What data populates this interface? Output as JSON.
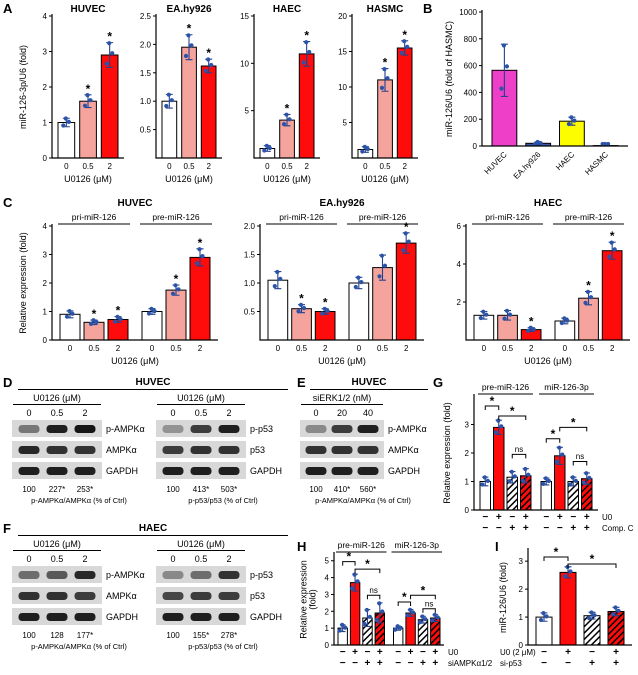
{
  "colors": {
    "bar_white": "#ffffff",
    "bar_salmon": "#f5a49d",
    "bar_red": "#fe0b0b",
    "bar_magenta": "#ee3fc8",
    "bar_blue": "#3d57a8",
    "bar_yellow": "#fdfd00",
    "dot_blue": "#2b53a8",
    "err_blue": "#24418c"
  },
  "panels": {
    "A": {
      "label": "A"
    },
    "B": {
      "label": "B"
    },
    "C": {
      "label": "C"
    },
    "D": {
      "label": "D",
      "title": "HUVEC",
      "blots": [
        {
          "treatment": "U0126 (μM)",
          "lanes": [
            "0",
            "0.5",
            "2"
          ],
          "rows": [
            "p-AMPKα",
            "AMPKα",
            "GAPDH"
          ],
          "band_intensity": [
            [
              0.5,
              0.95,
              1.0
            ],
            [
              0.9,
              0.85,
              0.85
            ],
            [
              0.95,
              0.95,
              0.95
            ]
          ],
          "quant": [
            "100",
            "227*",
            "253*"
          ],
          "quant_label": "p-AMPKα/AMPKα (% of Ctrl)"
        },
        {
          "treatment": "U0126 (μM)",
          "lanes": [
            "0",
            "0.5",
            "2"
          ],
          "rows": [
            "p-p53",
            "p53",
            "GAPDH"
          ],
          "band_intensity": [
            [
              0.35,
              0.8,
              0.95
            ],
            [
              0.8,
              0.85,
              0.85
            ],
            [
              0.95,
              0.95,
              0.95
            ]
          ],
          "quant": [
            "100",
            "413*",
            "503*"
          ],
          "quant_label": "p-p53/p53 (% of Ctrl)"
        }
      ]
    },
    "E": {
      "label": "E",
      "title": "HUVEC",
      "blots": [
        {
          "treatment": "siERK1/2 (nM)",
          "lanes": [
            "0",
            "20",
            "40"
          ],
          "rows": [
            "p-AMPKα",
            "AMPKα",
            "GAPDH"
          ],
          "band_intensity": [
            [
              0.4,
              0.8,
              0.95
            ],
            [
              0.85,
              0.85,
              0.85
            ],
            [
              0.95,
              0.95,
              0.95
            ]
          ],
          "quant": [
            "100",
            "410*",
            "560*"
          ],
          "quant_label": "p-AMPKα/AMPKα (% of Ctrl)"
        }
      ]
    },
    "F": {
      "label": "F",
      "title": "HAEC",
      "blots": [
        {
          "treatment": "U0126 (μM)",
          "lanes": [
            "0",
            "0.5",
            "2"
          ],
          "rows": [
            "p-AMPKα",
            "AMPKα",
            "GAPDH"
          ],
          "band_intensity": [
            [
              0.55,
              0.65,
              0.9
            ],
            [
              0.85,
              0.85,
              0.8
            ],
            [
              0.95,
              0.95,
              0.95
            ]
          ],
          "quant": [
            "100",
            "128",
            "177*"
          ],
          "quant_label": "p-AMPKα/AMPKα (% of Ctrl)"
        },
        {
          "treatment": "U0126 (μM)",
          "lanes": [
            "0",
            "0.5",
            "2"
          ],
          "rows": [
            "p-p53",
            "p53",
            "GAPDH"
          ],
          "band_intensity": [
            [
              0.4,
              0.55,
              0.85
            ],
            [
              0.75,
              0.8,
              0.8
            ],
            [
              0.95,
              0.95,
              0.95
            ]
          ],
          "quant": [
            "100",
            "155*",
            "278*"
          ],
          "quant_label": "p-p53/p53 (% of Ctrl)"
        }
      ]
    },
    "G": {
      "label": "G"
    },
    "H": {
      "label": "H"
    },
    "I": {
      "label": "I"
    }
  },
  "chart_data": [
    {
      "type": "bar",
      "panel": "A",
      "title": "HUVEC",
      "ylabel": "miR-126-3p/U6 (fold)",
      "xlabel": "U0126 (μM)",
      "categories": [
        "0",
        "0.5",
        "2"
      ],
      "values": [
        1.0,
        1.6,
        2.9
      ],
      "errors": [
        0.12,
        0.18,
        0.35
      ],
      "sig": [
        "",
        "*",
        "*"
      ],
      "bar_colors": [
        "white",
        "salmon",
        "red"
      ],
      "ylim": [
        0,
        4
      ],
      "yticks": [
        "0",
        "1",
        "2",
        "3",
        "4"
      ]
    },
    {
      "type": "bar",
      "panel": "A",
      "title": "EA.hy926",
      "xlabel": "U0126 (μM)",
      "categories": [
        "0",
        "0.5",
        "2"
      ],
      "values": [
        1.0,
        1.95,
        1.62
      ],
      "errors": [
        0.12,
        0.22,
        0.12
      ],
      "sig": [
        "",
        "*",
        "*"
      ],
      "bar_colors": [
        "white",
        "salmon",
        "red"
      ],
      "ylim": [
        0,
        2.5
      ],
      "yticks": [
        "0.5",
        "1.0",
        "1.5",
        "2.0",
        "2.5"
      ]
    },
    {
      "type": "bar",
      "panel": "A",
      "title": "HAEC",
      "xlabel": "U0126 (μM)",
      "categories": [
        "0",
        "0.5",
        "2"
      ],
      "values": [
        1.0,
        4.0,
        11.0
      ],
      "errors": [
        0.3,
        0.6,
        1.3
      ],
      "sig": [
        "",
        "*",
        "*"
      ],
      "bar_colors": [
        "white",
        "salmon",
        "red"
      ],
      "ylim": [
        0,
        15
      ],
      "yticks": [
        "5",
        "10",
        "15"
      ]
    },
    {
      "type": "bar",
      "panel": "A",
      "title": "HASMC",
      "xlabel": "U0126 (μM)",
      "categories": [
        "0",
        "0.5",
        "2"
      ],
      "values": [
        1.2,
        11.0,
        15.5
      ],
      "errors": [
        0.4,
        1.6,
        1.0
      ],
      "sig": [
        "",
        "*",
        "*"
      ],
      "bar_colors": [
        "white",
        "salmon",
        "red"
      ],
      "ylim": [
        0,
        20
      ],
      "yticks": [
        "5",
        "10",
        "15",
        "20"
      ]
    },
    {
      "type": "bar",
      "panel": "B",
      "ylabel": "miR-126/U6 (fold of HASMC)",
      "categories": [
        "HUVEC",
        "EA.hy926",
        "HAEC",
        "HASMC"
      ],
      "rotate_xticks": true,
      "values": [
        565,
        20,
        185,
        3
      ],
      "errors": [
        195,
        10,
        30,
        2
      ],
      "bar_colors": [
        "magenta",
        "blue",
        "yellow",
        "blue"
      ],
      "ylim": [
        0,
        1000
      ],
      "yticks": [
        "0",
        "200",
        "400",
        "600",
        "800",
        "1000"
      ]
    },
    {
      "type": "bar",
      "panel": "C",
      "title": "HUVEC",
      "ylabel": "Relative expression (fold)",
      "xlabel": "U0126 (μM)",
      "group_labels": [
        "pri-miR-126",
        "pre-miR-126"
      ],
      "group_size": 3,
      "categories": [
        "0",
        "0.5",
        "2",
        "0",
        "0.5",
        "2"
      ],
      "values": [
        0.9,
        0.62,
        0.72,
        1.0,
        1.75,
        2.9
      ],
      "errors": [
        0.12,
        0.08,
        0.1,
        0.1,
        0.18,
        0.3
      ],
      "sig": [
        "",
        "*",
        "*",
        "",
        "*",
        "*"
      ],
      "bar_colors": [
        "white",
        "salmon",
        "red",
        "white",
        "salmon",
        "red"
      ],
      "ylim": [
        0,
        4
      ],
      "yticks": [
        "0",
        "1",
        "2",
        "3",
        "4"
      ]
    },
    {
      "type": "bar",
      "panel": "C",
      "title": "EA.hy926",
      "xlabel": "U0126 (μM)",
      "group_labels": [
        "pri-miR-126",
        "pre-miR-126"
      ],
      "group_size": 3,
      "categories": [
        "0",
        "0.5",
        "2",
        "0",
        "0.5",
        "2"
      ],
      "values": [
        1.05,
        0.55,
        0.5,
        1.0,
        1.27,
        1.7
      ],
      "errors": [
        0.15,
        0.07,
        0.05,
        0.1,
        0.22,
        0.18
      ],
      "sig": [
        "",
        "*",
        "*",
        "",
        "",
        "*"
      ],
      "bar_colors": [
        "white",
        "salmon",
        "red",
        "white",
        "salmon",
        "red"
      ],
      "ylim": [
        0,
        2.0
      ],
      "yticks": [
        "0.5",
        "1.0",
        "1.5",
        "2.0"
      ]
    },
    {
      "type": "bar",
      "panel": "C",
      "title": "HAEC",
      "xlabel": "U0126 (μM)",
      "group_labels": [
        "pri-miR-126",
        "pre-miR-126"
      ],
      "group_size": 3,
      "categories": [
        "0",
        "0.5",
        "2",
        "0",
        "0.5",
        "2"
      ],
      "values": [
        1.3,
        1.3,
        0.55,
        1.0,
        2.2,
        4.7
      ],
      "errors": [
        0.2,
        0.25,
        0.1,
        0.15,
        0.35,
        0.45
      ],
      "sig": [
        "",
        "",
        "*",
        "",
        "*",
        "*"
      ],
      "bar_colors": [
        "white",
        "salmon",
        "red",
        "white",
        "salmon",
        "red"
      ],
      "ylim": [
        0,
        6
      ],
      "yticks": [
        "2",
        "4",
        "6"
      ]
    },
    {
      "type": "bar",
      "panel": "G",
      "ylabel": "Relative expression (fold)",
      "group_labels": [
        "pre-miR-126",
        "miR-126-3p"
      ],
      "group_size": 4,
      "values": [
        1.0,
        2.9,
        1.15,
        1.2,
        1.0,
        1.9,
        1.0,
        1.1
      ],
      "errors": [
        0.15,
        0.25,
        0.2,
        0.25,
        0.12,
        0.3,
        0.15,
        0.2
      ],
      "bar_colors": [
        "white",
        "red",
        "white_hatch",
        "red_hatch",
        "white",
        "red",
        "white_hatch",
        "red_hatch"
      ],
      "ylim": [
        0,
        4.0
      ],
      "yticks": [
        "0",
        "1",
        "2",
        "3"
      ],
      "sign_rows": [
        {
          "label": "U0",
          "side": "right",
          "signs": [
            "−",
            "+",
            "−",
            "+",
            "−",
            "+",
            "−",
            "+"
          ]
        },
        {
          "label": "Comp. C",
          "side": "right",
          "signs": [
            "−",
            "−",
            "+",
            "+",
            "−",
            "−",
            "+",
            "+"
          ]
        }
      ],
      "brackets": [
        {
          "i1": 0,
          "i2": 1,
          "y": 3.65,
          "label": "*"
        },
        {
          "i1": 1,
          "i2": 3,
          "y": 3.3,
          "label": "*"
        },
        {
          "i1": 2,
          "i2": 3,
          "y": 1.95,
          "label": "ns"
        },
        {
          "i1": 4,
          "i2": 5,
          "y": 2.5,
          "label": "*"
        },
        {
          "i1": 5,
          "i2": 7,
          "y": 2.9,
          "label": "*"
        },
        {
          "i1": 6,
          "i2": 7,
          "y": 1.7,
          "label": "ns"
        }
      ]
    },
    {
      "type": "bar",
      "panel": "H",
      "ylabel": [
        "Relative expression",
        "(fold)"
      ],
      "group_labels": [
        "pre-miR-126",
        "miR-126-3p"
      ],
      "group_size": 4,
      "values": [
        1.0,
        3.7,
        1.6,
        1.9,
        1.0,
        1.9,
        1.5,
        1.6
      ],
      "errors": [
        0.2,
        0.5,
        0.5,
        0.6,
        0.12,
        0.2,
        0.2,
        0.2
      ],
      "bar_colors": [
        "white",
        "red",
        "white_hatch",
        "red_hatch",
        "white",
        "red",
        "white_hatch",
        "red_hatch"
      ],
      "ylim": [
        0,
        5.4
      ],
      "yticks": [
        "0",
        "1",
        "2",
        "3",
        "4",
        "5"
      ],
      "sign_rows": [
        {
          "label": "U0",
          "side": "right",
          "signs": [
            "−",
            "+",
            "−",
            "+",
            "−",
            "+",
            "−",
            "+"
          ]
        },
        {
          "label": "siAMPKα1/2",
          "side": "right",
          "signs": [
            "−",
            "−",
            "+",
            "+",
            "−",
            "−",
            "+",
            "+"
          ]
        }
      ],
      "brackets": [
        {
          "i1": 0,
          "i2": 1,
          "y": 4.95,
          "label": "*"
        },
        {
          "i1": 1,
          "i2": 3,
          "y": 4.5,
          "label": "*"
        },
        {
          "i1": 2,
          "i2": 3,
          "y": 2.95,
          "label": "ns"
        },
        {
          "i1": 4,
          "i2": 5,
          "y": 2.55,
          "label": "*"
        },
        {
          "i1": 5,
          "i2": 7,
          "y": 2.95,
          "label": "*"
        },
        {
          "i1": 6,
          "i2": 7,
          "y": 2.15,
          "label": "ns"
        }
      ]
    },
    {
      "type": "bar",
      "panel": "I",
      "ylabel": "miR-126/U6 (fold)",
      "values": [
        1.0,
        2.6,
        1.05,
        1.2
      ],
      "errors": [
        0.15,
        0.2,
        0.12,
        0.15
      ],
      "bar_colors": [
        "white",
        "red",
        "white_hatch",
        "red_hatch"
      ],
      "ylim": [
        0,
        3.4
      ],
      "yticks": [
        "0",
        "1",
        "2",
        "3"
      ],
      "sign_rows": [
        {
          "label": "U0 (2 μM)",
          "side": "left",
          "signs": [
            "−",
            "+",
            "−",
            "+"
          ]
        },
        {
          "label": "si-p53",
          "side": "left",
          "signs": [
            "−",
            "−",
            "+",
            "+"
          ]
        }
      ],
      "brackets": [
        {
          "i1": 0,
          "i2": 1,
          "y": 3.15,
          "label": "*"
        },
        {
          "i1": 1,
          "i2": 3,
          "y": 2.9,
          "label": "*"
        }
      ]
    }
  ]
}
